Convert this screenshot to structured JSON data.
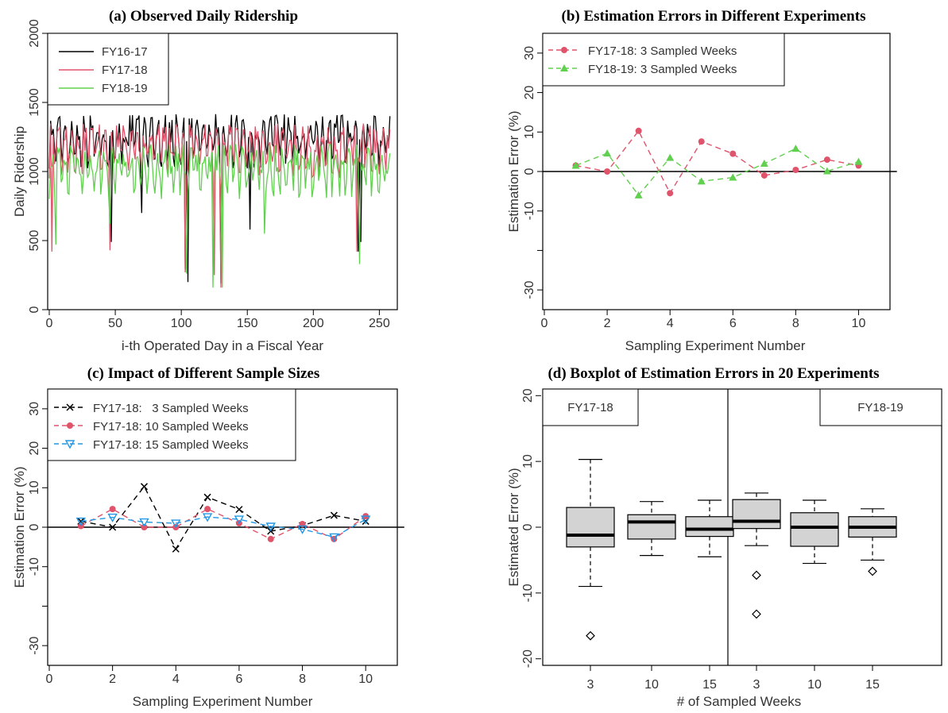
{
  "chart_data": [
    {
      "id": "a",
      "type": "line",
      "title": "(a) Observed Daily Ridership",
      "xlabel": "i-th Operated Day in a Fiscal Year",
      "ylabel": "Daily Ridership",
      "xlim": [
        0,
        265
      ],
      "ylim": [
        0,
        2050
      ],
      "xticks": [
        "0",
        "50",
        "100",
        "150",
        "200",
        "250"
      ],
      "yticks": [
        "0",
        "500",
        "1000",
        "1500",
        "2000"
      ],
      "legend": "top-left",
      "series": [
        {
          "name": "FY16-17",
          "color": "#000000"
        },
        {
          "name": "FY17-18",
          "color": "#df536b"
        },
        {
          "name": "FY18-19",
          "color": "#61d04f"
        }
      ]
    },
    {
      "id": "b",
      "type": "line",
      "title": "(b) Estimation Errors in Different Experiments",
      "xlabel": "Sampling Experiment Number",
      "ylabel": "Estimation Error (%)",
      "xlim": [
        0,
        11
      ],
      "ylim": [
        -35,
        35
      ],
      "xticks": [
        "0",
        "2",
        "4",
        "6",
        "8",
        "10"
      ],
      "yticks": [
        "-30",
        "-10",
        "0",
        "10",
        "20",
        "30"
      ],
      "legend": "top-left",
      "x": [
        1,
        2,
        3,
        4,
        5,
        6,
        7,
        8,
        9,
        10
      ],
      "series": [
        {
          "name": "FY17-18: 3 Sampled Weeks",
          "color": "#df536b",
          "marker": "circle",
          "values": [
            1.5,
            0,
            10.3,
            -5.5,
            7.6,
            4.5,
            -1,
            0.4,
            3,
            1.5
          ]
        },
        {
          "name": "FY18-19: 3 Sampled Weeks",
          "color": "#61d04f",
          "marker": "triangle",
          "values": [
            1.5,
            4.6,
            -6,
            3.5,
            -2.5,
            -1.5,
            2,
            5.8,
            0.1,
            2.5
          ]
        }
      ]
    },
    {
      "id": "c",
      "type": "line",
      "title": "(c) Impact of Different Sample Sizes",
      "xlabel": "Sampling Experiment Number",
      "ylabel": "Estimation Error (%)",
      "xlim": [
        0,
        11
      ],
      "ylim": [
        -35,
        35
      ],
      "xticks": [
        "0",
        "2",
        "4",
        "6",
        "8",
        "10"
      ],
      "yticks": [
        "-30",
        "-10",
        "0",
        "10",
        "20",
        "30"
      ],
      "legend": "top-left",
      "x": [
        1,
        2,
        3,
        4,
        5,
        6,
        7,
        8,
        9,
        10
      ],
      "series": [
        {
          "name": "FY17-18:   3 Sampled Weeks",
          "color": "#000000",
          "marker": "x",
          "values": [
            1.5,
            0,
            10.3,
            -5.5,
            7.6,
            4.5,
            -1,
            0.4,
            3,
            1.5
          ]
        },
        {
          "name": "FY17-18: 10 Sampled Weeks",
          "color": "#df536b",
          "marker": "circle",
          "values": [
            0.3,
            4.6,
            0,
            0,
            4.6,
            1,
            -3,
            0.8,
            -3,
            2.8
          ]
        },
        {
          "name": "FY17-18: 15 Sampled Weeks",
          "color": "#2297e6",
          "marker": "triangle-down",
          "values": [
            1.5,
            2.5,
            1.3,
            1,
            2.6,
            2,
            0.2,
            -0.5,
            -2.5,
            2
          ]
        }
      ]
    },
    {
      "id": "d",
      "type": "box",
      "title": "(d) Boxplot of Estimation Errors in 20 Experiments",
      "xlabel": "# of Sampled Weeks",
      "ylabel": "Estimated Error (%)",
      "ylim": [
        -21,
        21
      ],
      "yticks": [
        "-20",
        "-10",
        "0",
        "10",
        "20"
      ],
      "panels": [
        "FY17-18",
        "FY18-19"
      ],
      "boxes": [
        {
          "panel": "FY17-18",
          "label": "3",
          "whisker_low": -9,
          "q1": -3,
          "median": -1.2,
          "q3": 3,
          "whisker_high": 10.3,
          "outliers": [
            -16.5
          ]
        },
        {
          "panel": "FY17-18",
          "label": "10",
          "whisker_low": -4.3,
          "q1": -1.8,
          "median": 0.8,
          "q3": 1.9,
          "whisker_high": 3.9,
          "outliers": []
        },
        {
          "panel": "FY17-18",
          "label": "15",
          "whisker_low": -4.5,
          "q1": -1.4,
          "median": -0.3,
          "q3": 1.6,
          "whisker_high": 4.1,
          "outliers": []
        },
        {
          "panel": "FY18-19",
          "label": "3",
          "whisker_low": -2.8,
          "q1": -0.2,
          "median": 0.9,
          "q3": 4.2,
          "whisker_high": 5.2,
          "outliers": [
            -7.3,
            -13.2
          ]
        },
        {
          "panel": "FY18-19",
          "label": "10",
          "whisker_low": -5.5,
          "q1": -2.9,
          "median": 0,
          "q3": 2.2,
          "whisker_high": 4.1,
          "outliers": []
        },
        {
          "panel": "FY18-19",
          "label": "15",
          "whisker_low": -5,
          "q1": -1.5,
          "median": 0,
          "q3": 1.6,
          "whisker_high": 2.8,
          "outliers": [
            -6.7
          ]
        }
      ]
    }
  ]
}
